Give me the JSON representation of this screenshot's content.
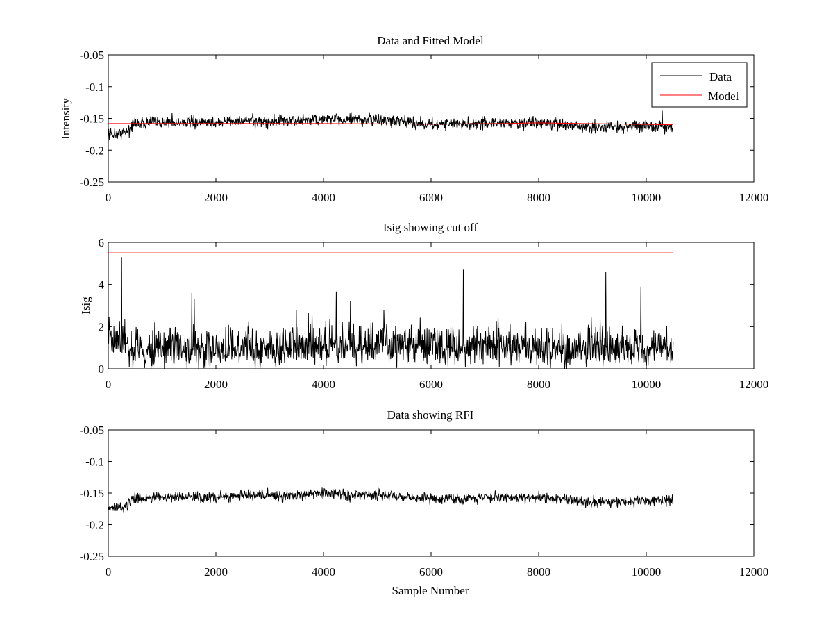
{
  "figure": {
    "background": "#ffffff"
  },
  "chart_data": [
    {
      "type": "line",
      "title": "Data and Fitted Model",
      "xlabel": "",
      "ylabel": "Intensity",
      "xlim": [
        0,
        12000
      ],
      "ylim": [
        -0.25,
        -0.05
      ],
      "y_reversed": true,
      "x_ticks": [
        "0",
        "2000",
        "4000",
        "6000",
        "8000",
        "10000",
        "12000"
      ],
      "y_ticks": [
        "-0.05",
        "-0.1",
        "-0.15",
        "-0.2",
        "-0.25"
      ],
      "legend": {
        "placement": "top-right",
        "entries": [
          "Data",
          "Model"
        ]
      },
      "series": [
        {
          "name": "Data",
          "color": "#000000",
          "x_range": [
            0,
            10500
          ],
          "baseline_points": [
            [
              0,
              -0.175
            ],
            [
              300,
              -0.172
            ],
            [
              500,
              -0.158
            ],
            [
              1000,
              -0.156
            ],
            [
              2000,
              -0.157
            ],
            [
              2500,
              -0.153
            ],
            [
              3000,
              -0.155
            ],
            [
              4000,
              -0.151
            ],
            [
              5000,
              -0.153
            ],
            [
              6000,
              -0.159
            ],
            [
              7000,
              -0.158
            ],
            [
              8000,
              -0.156
            ],
            [
              9000,
              -0.164
            ],
            [
              10000,
              -0.162
            ],
            [
              10500,
              -0.163
            ]
          ],
          "noise_amplitude": 0.009
        },
        {
          "name": "Model",
          "color": "#ff0000",
          "x_range": [
            0,
            10500
          ],
          "points": [
            [
              0,
              -0.158
            ],
            [
              4000,
              -0.158
            ],
            [
              6000,
              -0.159
            ],
            [
              7400,
              -0.158
            ],
            [
              8000,
              -0.157
            ],
            [
              8800,
              -0.158
            ],
            [
              10500,
              -0.16
            ]
          ]
        }
      ]
    },
    {
      "type": "line",
      "title": "Isig showing cut off",
      "xlabel": "",
      "ylabel": "Isig",
      "xlim": [
        0,
        12000
      ],
      "ylim": [
        0,
        6
      ],
      "x_ticks": [
        "0",
        "2000",
        "4000",
        "6000",
        "8000",
        "10000",
        "12000"
      ],
      "y_ticks": [
        "0",
        "2",
        "4",
        "6"
      ],
      "series": [
        {
          "color": "#000000",
          "x_range": [
            0,
            10500
          ],
          "baseline_points": [
            [
              0,
              1.5
            ],
            [
              300,
              1.2
            ],
            [
              500,
              0.8
            ],
            [
              2000,
              0.9
            ],
            [
              4000,
              1.1
            ],
            [
              6000,
              1.0
            ],
            [
              8000,
              1.0
            ],
            [
              10500,
              0.9
            ]
          ],
          "noise_amplitude": 1.0,
          "peak_values": [
            [
              250,
              5.3
            ],
            [
              1550,
              3.6
            ],
            [
              4500,
              3.2
            ],
            [
              6600,
              4.7
            ],
            [
              9250,
              4.6
            ],
            [
              9900,
              3.9
            ]
          ]
        },
        {
          "color": "#ff0000",
          "x_range": [
            0,
            10500
          ],
          "points": [
            [
              0,
              5.5
            ],
            [
              10500,
              5.5
            ]
          ]
        }
      ]
    },
    {
      "type": "line",
      "title": "Data showing RFI",
      "xlabel": "Sample Number",
      "ylabel": "",
      "xlim": [
        0,
        12000
      ],
      "ylim": [
        -0.25,
        -0.05
      ],
      "y_reversed": true,
      "x_ticks": [
        "0",
        "2000",
        "4000",
        "6000",
        "8000",
        "10000",
        "12000"
      ],
      "y_ticks": [
        "-0.05",
        "-0.1",
        "-0.15",
        "-0.2",
        "-0.25"
      ],
      "series": [
        {
          "color": "#000000",
          "x_range": [
            0,
            10500
          ],
          "baseline_points": [
            [
              0,
              -0.175
            ],
            [
              300,
              -0.172
            ],
            [
              500,
              -0.158
            ],
            [
              1000,
              -0.156
            ],
            [
              2000,
              -0.157
            ],
            [
              2500,
              -0.153
            ],
            [
              3000,
              -0.155
            ],
            [
              4000,
              -0.151
            ],
            [
              5000,
              -0.153
            ],
            [
              6000,
              -0.159
            ],
            [
              7000,
              -0.158
            ],
            [
              8000,
              -0.156
            ],
            [
              9000,
              -0.164
            ],
            [
              10000,
              -0.162
            ],
            [
              10500,
              -0.163
            ]
          ],
          "noise_amplitude": 0.008
        }
      ]
    }
  ]
}
